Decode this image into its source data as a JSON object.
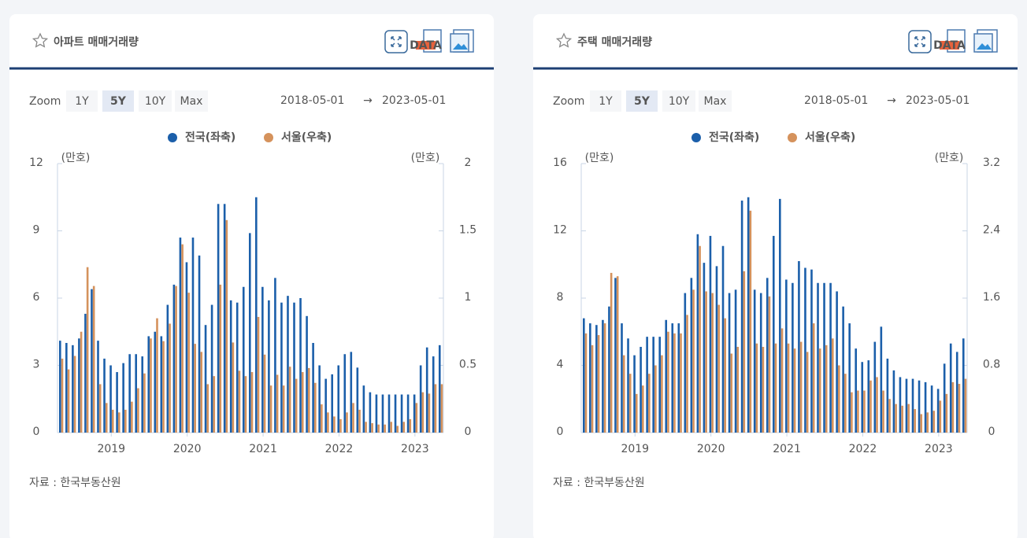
{
  "panels": [
    {
      "title": "아파트 매매거래량",
      "data_icon_label": "DATA",
      "zoom_label": "Zoom",
      "zoom_buttons": [
        "1Y",
        "5Y",
        "10Y",
        "Max"
      ],
      "active_zoom": 1,
      "date_from": "2018-05-01",
      "arrow": "→",
      "date_to": "2023-05-01",
      "source": "자료 :  한국부동산원"
    },
    {
      "title": "주택 매매거래량",
      "data_icon_label": "DATA",
      "zoom_label": "Zoom",
      "zoom_buttons": [
        "1Y",
        "5Y",
        "10Y",
        "Max"
      ],
      "active_zoom": 1,
      "date_from": "2018-05-01",
      "arrow": "→",
      "date_to": "2023-05-01",
      "source": "자료 :  한국부동산원"
    }
  ],
  "chart_data": [
    {
      "type": "bar",
      "y_unit_label": "(만호)",
      "y2_unit_label": "(만호)",
      "categories": [
        null,
        null,
        null,
        null,
        null,
        null,
        null,
        null,
        "2019",
        null,
        null,
        null,
        null,
        null,
        null,
        null,
        null,
        null,
        null,
        null,
        "2020",
        null,
        null,
        null,
        null,
        null,
        null,
        null,
        null,
        null,
        null,
        null,
        "2021",
        null,
        null,
        null,
        null,
        null,
        null,
        null,
        null,
        null,
        null,
        null,
        "2022",
        null,
        null,
        null,
        null,
        null,
        null,
        null,
        null,
        null,
        null,
        null,
        "2023",
        null,
        null,
        null,
        null
      ],
      "ylim": [
        0,
        12
      ],
      "yticks": [
        0,
        3,
        6,
        9,
        12
      ],
      "y2lim": [
        0,
        2
      ],
      "y2ticks": [
        0,
        0.5,
        1,
        1.5,
        2
      ],
      "series": [
        {
          "name": "전국(좌축)",
          "color": "#1b5faa",
          "values": [
            4.1,
            4.0,
            3.9,
            4.2,
            5.3,
            6.4,
            4.1,
            3.3,
            3.0,
            2.7,
            3.1,
            3.5,
            3.5,
            3.4,
            4.3,
            4.5,
            4.3,
            5.7,
            6.6,
            8.7,
            7.6,
            8.7,
            7.9,
            4.8,
            5.7,
            10.2,
            10.2,
            5.9,
            5.8,
            6.5,
            8.9,
            10.5,
            6.5,
            5.9,
            6.9,
            5.8,
            6.1,
            5.8,
            6.0,
            5.2,
            4.0,
            3.0,
            2.4,
            2.6,
            3.0,
            3.5,
            3.6,
            2.9,
            2.1,
            1.8,
            1.7,
            1.7,
            1.7,
            1.7,
            1.7,
            1.7,
            1.7,
            3.0,
            3.8,
            3.4,
            3.9
          ]
        },
        {
          "name": "서울(우축)",
          "color": "#d5925c",
          "axis": "y2",
          "values": [
            0.55,
            0.47,
            0.57,
            0.75,
            1.23,
            1.09,
            0.36,
            0.22,
            0.17,
            0.15,
            0.17,
            0.23,
            0.33,
            0.44,
            0.7,
            0.85,
            0.68,
            0.81,
            1.09,
            1.4,
            1.04,
            0.66,
            0.6,
            0.36,
            0.42,
            1.1,
            1.58,
            0.67,
            0.46,
            0.42,
            0.45,
            0.86,
            0.58,
            0.35,
            0.43,
            0.35,
            0.49,
            0.4,
            0.45,
            0.48,
            0.37,
            0.21,
            0.15,
            0.12,
            0.1,
            0.15,
            0.22,
            0.17,
            0.08,
            0.07,
            0.06,
            0.06,
            0.08,
            0.05,
            0.08,
            0.1,
            0.22,
            0.3,
            0.29,
            0.36,
            0.36
          ]
        }
      ]
    },
    {
      "type": "bar",
      "y_unit_label": "(만호)",
      "y2_unit_label": "(만호)",
      "categories": [
        null,
        null,
        null,
        null,
        null,
        null,
        null,
        null,
        "2019",
        null,
        null,
        null,
        null,
        null,
        null,
        null,
        null,
        null,
        null,
        null,
        "2020",
        null,
        null,
        null,
        null,
        null,
        null,
        null,
        null,
        null,
        null,
        null,
        "2021",
        null,
        null,
        null,
        null,
        null,
        null,
        null,
        null,
        null,
        null,
        null,
        "2022",
        null,
        null,
        null,
        null,
        null,
        null,
        null,
        null,
        null,
        null,
        null,
        "2023",
        null,
        null,
        null,
        null
      ],
      "ylim": [
        0,
        16
      ],
      "yticks": [
        0,
        4,
        8,
        12,
        16
      ],
      "y2lim": [
        0,
        3.2
      ],
      "y2ticks": [
        0,
        0.8,
        1.6,
        2.4,
        3.2
      ],
      "series": [
        {
          "name": "전국(좌축)",
          "color": "#1b5faa",
          "values": [
            6.8,
            6.5,
            6.4,
            6.7,
            7.5,
            9.2,
            6.5,
            5.6,
            4.6,
            5.1,
            5.7,
            5.7,
            5.7,
            6.7,
            6.5,
            6.5,
            8.3,
            9.2,
            11.8,
            10.1,
            11.7,
            9.9,
            11.1,
            8.3,
            8.5,
            13.8,
            14.0,
            8.5,
            8.3,
            9.2,
            11.7,
            13.9,
            9.1,
            8.9,
            10.2,
            9.8,
            9.7,
            8.9,
            8.9,
            8.9,
            8.4,
            7.5,
            6.5,
            5.0,
            4.2,
            4.3,
            5.4,
            6.3,
            4.4,
            3.7,
            3.3,
            3.2,
            3.2,
            3.1,
            3.0,
            2.8,
            2.6,
            4.1,
            5.3,
            4.8,
            5.6
          ]
        },
        {
          "name": "서울(우축)",
          "color": "#d5925c",
          "axis": "y2",
          "values": [
            1.18,
            1.04,
            1.16,
            1.3,
            1.9,
            1.86,
            0.92,
            0.7,
            0.46,
            0.56,
            0.7,
            0.8,
            0.92,
            1.2,
            1.18,
            1.18,
            1.4,
            1.7,
            2.22,
            1.68,
            1.66,
            1.52,
            1.36,
            0.94,
            1.02,
            1.92,
            2.64,
            1.06,
            1.02,
            1.62,
            1.06,
            1.24,
            1.06,
            1.0,
            1.08,
            0.96,
            1.3,
            1.0,
            1.04,
            1.12,
            0.8,
            0.7,
            0.48,
            0.5,
            0.5,
            0.62,
            0.66,
            0.5,
            0.4,
            0.34,
            0.32,
            0.34,
            0.28,
            0.22,
            0.24,
            0.26,
            0.38,
            0.46,
            0.6,
            0.58,
            0.64
          ]
        }
      ]
    }
  ]
}
